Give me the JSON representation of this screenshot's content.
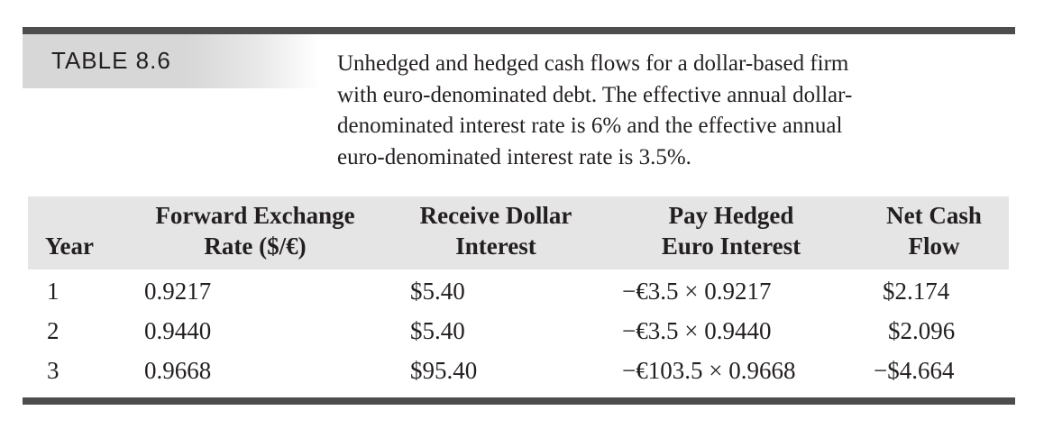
{
  "table": {
    "label": "TABLE 8.6",
    "caption": "Unhedged and hedged cash flows for a dollar-based firm with euro-denominated debt. The effective annual dollar-denominated interest rate is 6% and the effective annual euro-denominated interest rate is 3.5%.",
    "caption_lines": [
      "Unhedged and hedged cash flows for a dollar-based firm",
      "with euro-denominated debt. The effective annual dollar-",
      "denominated interest rate is 6% and the effective annual",
      "euro-denominated interest rate is 3.5%."
    ],
    "columns": [
      {
        "lines": [
          "Year"
        ]
      },
      {
        "lines": [
          "Forward Exchange",
          "Rate ($/€)"
        ]
      },
      {
        "lines": [
          "Receive Dollar",
          "Interest"
        ]
      },
      {
        "lines": [
          "Pay Hedged",
          "Euro Interest"
        ]
      },
      {
        "lines": [
          "Net Cash",
          "Flow"
        ]
      }
    ],
    "rows": [
      {
        "year": "1",
        "forward_rate": "0.9217",
        "receive_dollar": "$5.40",
        "pay_euro": "−€3.5 × 0.9217",
        "net": "$2.174"
      },
      {
        "year": "2",
        "forward_rate": "0.9440",
        "receive_dollar": "$5.40",
        "pay_euro": "−€3.5 × 0.9440",
        "net": "$2.096"
      },
      {
        "year": "3",
        "forward_rate": "0.9668",
        "receive_dollar": "$95.40",
        "pay_euro": "−€103.5 × 0.9668",
        "net": "−$4.664"
      }
    ]
  },
  "colors": {
    "rule": "#4d4d4d",
    "header_band": "#e5e5e6",
    "text": "#231f20"
  }
}
